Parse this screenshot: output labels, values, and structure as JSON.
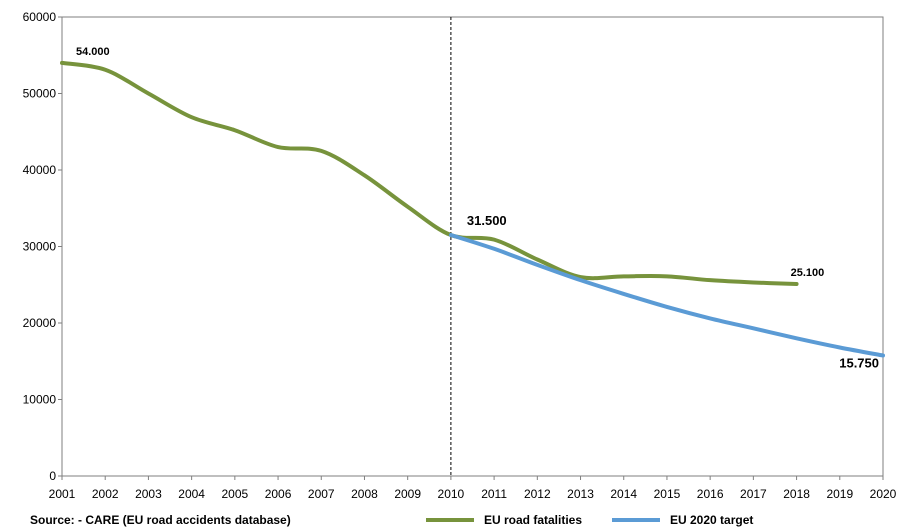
{
  "chart_data": {
    "type": "line",
    "x": [
      2001,
      2002,
      2003,
      2004,
      2005,
      2006,
      2007,
      2008,
      2009,
      2010,
      2011,
      2012,
      2013,
      2014,
      2015,
      2016,
      2017,
      2018,
      2019,
      2020
    ],
    "ylim": [
      0,
      60000
    ],
    "yticks": [
      0,
      10000,
      20000,
      30000,
      40000,
      50000,
      60000
    ],
    "grid": false,
    "reference_line_x": 2010,
    "series": [
      {
        "name": "EU road fatalities",
        "color": "#77933c",
        "values": [
          54000,
          53100,
          50000,
          46900,
          45200,
          43000,
          42500,
          39300,
          35200,
          31500,
          30900,
          28300,
          26000,
          26100,
          26100,
          25600,
          25300,
          25100,
          null,
          null
        ]
      },
      {
        "name": "EU 2020 target",
        "color": "#5b9bd5",
        "values": [
          null,
          null,
          null,
          null,
          null,
          null,
          null,
          null,
          null,
          31500,
          29700,
          27600,
          25600,
          23800,
          22100,
          20600,
          19300,
          18000,
          16800,
          15750
        ]
      }
    ],
    "annotations": [
      {
        "text": "54.000",
        "x": 2001,
        "y": 54000,
        "size": "small"
      },
      {
        "text": "31.500",
        "x": 2010,
        "y": 31500,
        "size": "big"
      },
      {
        "text": "25.100",
        "x": 2018,
        "y": 25100,
        "size": "small"
      },
      {
        "text": "15.750",
        "x": 2020,
        "y": 15750,
        "size": "big"
      }
    ]
  },
  "source": "Source: - CARE (EU road accidents database)"
}
